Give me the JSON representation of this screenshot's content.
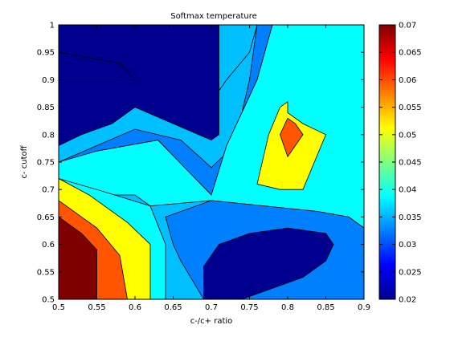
{
  "chart_data": {
    "type": "contourf",
    "title": "Softmax temperature",
    "xlabel": "c-/c+ ratio",
    "ylabel": "c- cutoff",
    "xlim": [
      0.5,
      0.9
    ],
    "ylim": [
      0.5,
      1.0
    ],
    "x_ticks": [
      "0.5",
      "0.55",
      "0.6",
      "0.65",
      "0.7",
      "0.75",
      "0.8",
      "0.85",
      "0.9"
    ],
    "y_ticks": [
      "0.5",
      "0.55",
      "0.6",
      "0.65",
      "0.7",
      "0.75",
      "0.8",
      "0.85",
      "0.9",
      "0.95",
      "1"
    ],
    "colorbar": {
      "range": [
        0.02,
        0.07
      ],
      "ticks": [
        "0.02",
        "0.025",
        "0.03",
        "0.035",
        "0.04",
        "0.045",
        "0.05",
        "0.055",
        "0.06",
        "0.065",
        "0.07"
      ],
      "colormap": "jet"
    },
    "contour_regions": [
      {
        "level": 0.025,
        "color": "#00BFFF",
        "points": [
          [
            0.5,
            0.78
          ],
          [
            0.52,
            0.8
          ],
          [
            0.6,
            0.85
          ],
          [
            0.65,
            0.87
          ],
          [
            0.7,
            0.86
          ],
          [
            0.72,
            0.9
          ],
          [
            0.75,
            0.95
          ],
          [
            0.76,
            1.0
          ],
          [
            0.5,
            1.0
          ]
        ]
      },
      {
        "level": 0.02,
        "color": "#00008F",
        "points": [
          [
            0.5,
            0.78
          ],
          [
            0.53,
            0.8
          ],
          [
            0.57,
            0.82
          ],
          [
            0.6,
            0.85
          ],
          [
            0.7,
            0.79
          ],
          [
            0.71,
            0.8
          ],
          [
            0.71,
            0.9
          ],
          [
            0.71,
            1.0
          ],
          [
            0.5,
            1.0
          ]
        ]
      },
      {
        "level": 0.025,
        "color": "#007FFF",
        "points": [
          [
            0.5,
            0.75
          ],
          [
            0.55,
            0.78
          ],
          [
            0.6,
            0.81
          ],
          [
            0.66,
            0.79
          ],
          [
            0.7,
            0.74
          ],
          [
            0.73,
            0.78
          ],
          [
            0.75,
            0.9
          ],
          [
            0.76,
            1.0
          ],
          [
            0.78,
            1.0
          ],
          [
            0.76,
            0.9
          ],
          [
            0.72,
            0.78
          ],
          [
            0.7,
            0.69
          ],
          [
            0.63,
            0.79
          ],
          [
            0.55,
            0.77
          ],
          [
            0.5,
            0.72
          ]
        ]
      },
      {
        "level": 0.035,
        "color": "#00FFFF",
        "points": [
          [
            0.5,
            0.72
          ],
          [
            0.54,
            0.69
          ],
          [
            0.6,
            0.69
          ],
          [
            0.62,
            0.67
          ],
          [
            0.7,
            0.68
          ],
          [
            0.84,
            0.66
          ],
          [
            0.88,
            0.65
          ],
          [
            0.9,
            0.63
          ],
          [
            0.9,
            1.0
          ],
          [
            0.78,
            1.0
          ],
          [
            0.76,
            0.9
          ],
          [
            0.72,
            0.78
          ],
          [
            0.7,
            0.69
          ],
          [
            0.63,
            0.79
          ],
          [
            0.55,
            0.77
          ],
          [
            0.5,
            0.75
          ]
        ]
      },
      {
        "level": 0.025,
        "color": "#007FFF",
        "points": [
          [
            0.64,
            0.65
          ],
          [
            0.7,
            0.68
          ],
          [
            0.84,
            0.66
          ],
          [
            0.88,
            0.65
          ],
          [
            0.9,
            0.63
          ],
          [
            0.9,
            0.5
          ],
          [
            0.69,
            0.5
          ],
          [
            0.66,
            0.57
          ],
          [
            0.65,
            0.6
          ]
        ]
      },
      {
        "level": 0.02,
        "color": "#00008F",
        "points": [
          [
            0.69,
            0.5
          ],
          [
            0.69,
            0.56
          ],
          [
            0.71,
            0.6
          ],
          [
            0.75,
            0.62
          ],
          [
            0.8,
            0.63
          ],
          [
            0.85,
            0.62
          ],
          [
            0.86,
            0.6
          ],
          [
            0.85,
            0.57
          ],
          [
            0.82,
            0.54
          ],
          [
            0.74,
            0.5
          ]
        ]
      },
      {
        "level": 0.045,
        "color": "#FFFF00",
        "points": [
          [
            0.775,
            0.8
          ],
          [
            0.79,
            0.85
          ],
          [
            0.8,
            0.86
          ],
          [
            0.8,
            0.84
          ],
          [
            0.82,
            0.82
          ],
          [
            0.85,
            0.8
          ],
          [
            0.82,
            0.7
          ],
          [
            0.79,
            0.7
          ],
          [
            0.76,
            0.71
          ],
          [
            0.775,
            0.8
          ]
        ]
      },
      {
        "level": 0.055,
        "color": "#FF5500",
        "points": [
          [
            0.8,
            0.83
          ],
          [
            0.81,
            0.82
          ],
          [
            0.82,
            0.8
          ],
          [
            0.8,
            0.76
          ],
          [
            0.79,
            0.8
          ]
        ]
      },
      {
        "level": 0.035,
        "color": "#00FFFF",
        "points": [
          [
            0.5,
            0.72
          ],
          [
            0.5,
            0.5
          ],
          [
            0.64,
            0.5
          ],
          [
            0.64,
            0.6
          ],
          [
            0.62,
            0.67
          ],
          [
            0.55,
            0.7
          ]
        ]
      },
      {
        "level": 0.045,
        "color": "#FFFF00",
        "points": [
          [
            0.5,
            0.72
          ],
          [
            0.54,
            0.69
          ],
          [
            0.59,
            0.64
          ],
          [
            0.62,
            0.6
          ],
          [
            0.62,
            0.5
          ],
          [
            0.5,
            0.5
          ]
        ]
      },
      {
        "level": 0.055,
        "color": "#FF5500",
        "points": [
          [
            0.5,
            0.68
          ],
          [
            0.51,
            0.67
          ],
          [
            0.55,
            0.63
          ],
          [
            0.58,
            0.58
          ],
          [
            0.59,
            0.5
          ],
          [
            0.5,
            0.5
          ]
        ]
      },
      {
        "level": 0.065,
        "color": "#800000",
        "points": [
          [
            0.5,
            0.65
          ],
          [
            0.51,
            0.64
          ],
          [
            0.53,
            0.62
          ],
          [
            0.55,
            0.59
          ],
          [
            0.55,
            0.5
          ],
          [
            0.5,
            0.5
          ]
        ]
      },
      {
        "level": 0.02,
        "color": "#00008F",
        "points": [
          [
            0.5,
            0.95
          ],
          [
            0.58,
            0.93
          ],
          [
            0.6,
            0.9
          ],
          [
            0.5,
            0.9
          ]
        ]
      }
    ]
  }
}
